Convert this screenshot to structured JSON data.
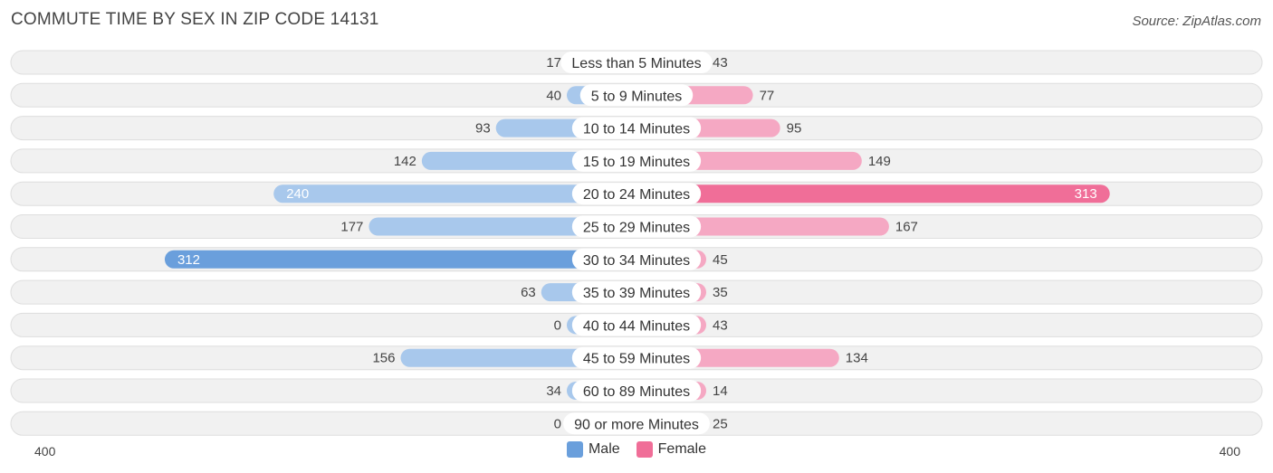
{
  "header": {
    "title": "COMMUTE TIME BY SEX IN ZIP CODE 14131",
    "source": "Source: ZipAtlas.com"
  },
  "colors": {
    "male_light": "#a8c8ec",
    "male_strong": "#6a9fdc",
    "female_light": "#f5a8c3",
    "female_strong": "#f06e98"
  },
  "legend": {
    "male": "Male",
    "female": "Female"
  },
  "chart_data": {
    "type": "bar",
    "orientation": "horizontal-diverging",
    "categories": [
      "Less than 5 Minutes",
      "5 to 9 Minutes",
      "10 to 14 Minutes",
      "15 to 19 Minutes",
      "20 to 24 Minutes",
      "25 to 29 Minutes",
      "30 to 34 Minutes",
      "35 to 39 Minutes",
      "40 to 44 Minutes",
      "45 to 59 Minutes",
      "60 to 89 Minutes",
      "90 or more Minutes"
    ],
    "series": [
      {
        "name": "Male",
        "values": [
          17,
          40,
          93,
          142,
          240,
          177,
          312,
          63,
          0,
          156,
          34,
          0
        ]
      },
      {
        "name": "Female",
        "values": [
          43,
          77,
          95,
          149,
          313,
          167,
          45,
          35,
          43,
          134,
          14,
          25
        ]
      }
    ],
    "axis": {
      "left_label": "400",
      "right_label": "400",
      "max": 400
    }
  }
}
